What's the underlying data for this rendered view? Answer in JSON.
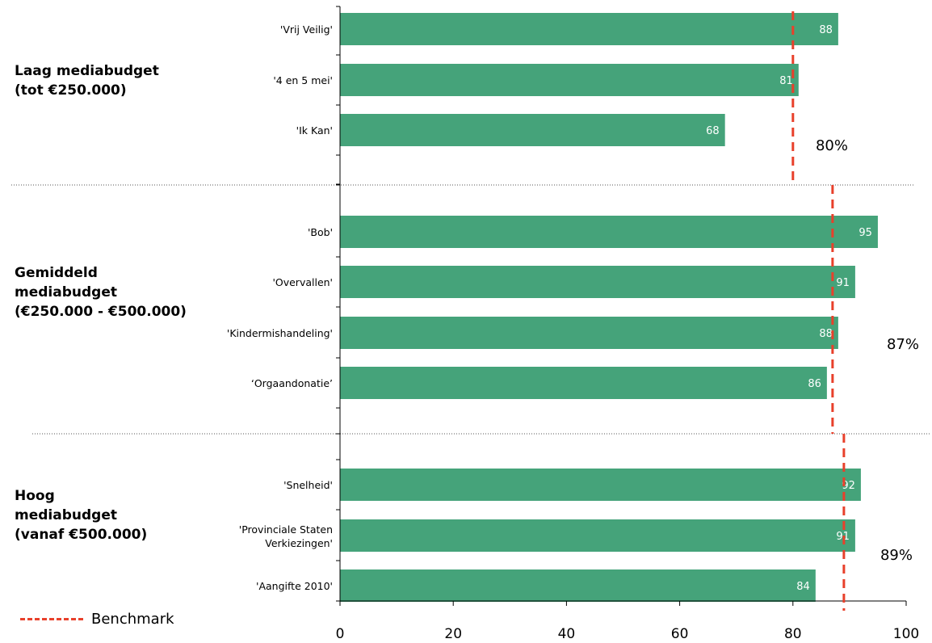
{
  "chart_data": {
    "type": "bar",
    "orientation": "horizontal",
    "xlim": [
      0,
      100
    ],
    "xticks": [
      "0",
      "20",
      "40",
      "60",
      "80",
      "100"
    ],
    "bar_color": "#45a37a",
    "benchmark_color": "#e8402b",
    "groups": [
      {
        "label_lines": [
          "Laag mediabudget",
          "(tot €250.000)"
        ],
        "benchmark": 80,
        "benchmark_label": "80%",
        "bars": [
          {
            "category": "'Vrij Veilig'",
            "value": 88,
            "value_label": "88"
          },
          {
            "category": "'4 en 5 mei'",
            "value": 81,
            "value_label": "81"
          },
          {
            "category": "'Ik Kan'",
            "value": 68,
            "value_label": "68"
          }
        ]
      },
      {
        "label_lines": [
          "Gemiddeld",
          "mediabudget",
          "(€250.000 - €500.000)"
        ],
        "benchmark": 87,
        "benchmark_label": "87%",
        "bars": [
          {
            "category": "'Bob'",
            "value": 95,
            "value_label": "95"
          },
          {
            "category": "'Overvallen'",
            "value": 91,
            "value_label": "91"
          },
          {
            "category": "'Kindermishandeling'",
            "value": 88,
            "value_label": "88"
          },
          {
            "category": "‘Orgaandonatie’",
            "value": 86,
            "value_label": "86"
          }
        ]
      },
      {
        "label_lines": [
          "Hoog",
          "mediabudget",
          "(vanaf €500.000)"
        ],
        "benchmark": 89,
        "benchmark_label": "89%",
        "bars": [
          {
            "category": "'Snelheid'",
            "value": 92,
            "value_label": "92"
          },
          {
            "category": "'Provinciale Staten Verkiezingen'",
            "value": 91,
            "value_label": "91"
          },
          {
            "category": "'Aangifte 2010'",
            "value": 84,
            "value_label": "84"
          }
        ]
      }
    ],
    "legend": {
      "label": "Benchmark",
      "position": "bottom-left"
    }
  }
}
